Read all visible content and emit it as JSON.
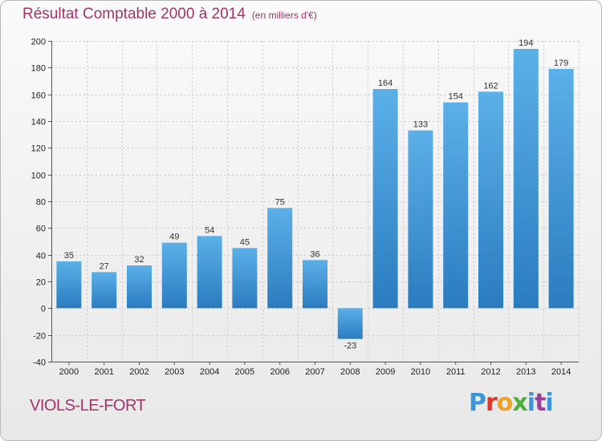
{
  "chart_data": {
    "type": "bar",
    "title": "Résultat Comptable 2000 à 2014",
    "subtitle": "(en milliers d'€)",
    "categories": [
      "2000",
      "2001",
      "2002",
      "2003",
      "2004",
      "2005",
      "2006",
      "2007",
      "2008",
      "2009",
      "2010",
      "2011",
      "2012",
      "2013",
      "2014"
    ],
    "values": [
      35,
      27,
      32,
      49,
      54,
      45,
      75,
      36,
      -23,
      164,
      133,
      154,
      162,
      194,
      179
    ],
    "ylim": [
      -40,
      200
    ],
    "yticks": [
      -40,
      -20,
      0,
      20,
      40,
      60,
      80,
      100,
      120,
      140,
      160,
      180,
      200
    ],
    "xlabel": "",
    "ylabel": "",
    "grid": true,
    "legend": "none",
    "bar_color": "#3d95d6"
  },
  "footer": {
    "commune": "VIOLS-LE-FORT",
    "logo": "Proxiti"
  },
  "colors": {
    "title": "#a3346a",
    "bar_top": "#5aaee6",
    "bar_bottom": "#2a7dc0"
  }
}
